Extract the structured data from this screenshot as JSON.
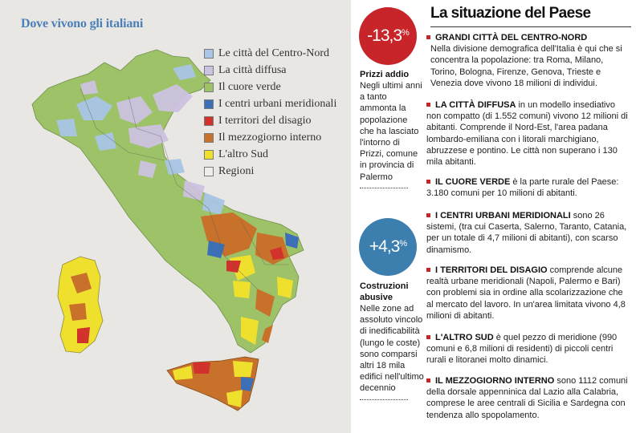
{
  "map": {
    "title": "Dove vivono gli italiani",
    "legend": [
      {
        "label": "Le città del Centro-Nord",
        "color": "#a9c6e6"
      },
      {
        "label": "La città diffusa",
        "color": "#cdc2e0"
      },
      {
        "label": "Il cuore verde",
        "color": "#9dc267"
      },
      {
        "label": "I centri urbani meridionali",
        "color": "#3d6fb6"
      },
      {
        "label": "I territori del disagio",
        "color": "#d2322c"
      },
      {
        "label": "Il mezzogiorno interno",
        "color": "#c8712a"
      },
      {
        "label": "L'altro Sud",
        "color": "#f0e02e"
      },
      {
        "label": "Regioni",
        "color": "#f0eeea"
      }
    ]
  },
  "stats": [
    {
      "value": "-13,3",
      "unit": "%",
      "color": "#c8252b",
      "head": "Prizzi addio",
      "body": "Negli ultimi anni a tanto ammonta la popolazione che ha lasciato l'intorno di Prizzi, comune in provincia di Palermo"
    },
    {
      "value": "+4,3",
      "unit": "%",
      "color": "#3c7fae",
      "head": "Costruzioni abusive",
      "body": "Nelle zone ad assoluto vincolo di inedificabilità (lungo le coste) sono comparsi altri 18 mila edifici nell'ultimo decennio"
    }
  ],
  "article": {
    "title": "La situazione del Paese",
    "sections": [
      {
        "head": "GRANDI CITTÀ DEL CENTRO-NORD",
        "body": "Nella divisione demografica dell'Italia è qui che si concentra la popolazione: tra Roma, Milano, Torino, Bologna, Firenze, Genova, Trieste e Venezia dove vivono 18 milioni di individui."
      },
      {
        "head": "LA CITTÀ DIFFUSA",
        "body": "in un modello insediativo non compatto (di 1.552 comuni) vivono 12 milioni di abitanti. Comprende il Nord-Est, l'area padana lombardo-emiliana con i litorali marchigiano, abruzzese e pontino. Le città non superano i 130 mila abitanti."
      },
      {
        "head": "IL CUORE VERDE",
        "body": "è la parte rurale del Paese: 3.180 comuni per 10 milioni di abitanti."
      },
      {
        "head": "I CENTRI URBANI MERIDIONALI",
        "body": "sono 26 sistemi, (tra cui Caserta, Salerno, Taranto, Catania, per un totale di 4,7 milioni di abitanti), con scarso dinamismo."
      },
      {
        "head": "I TERRITORI DEL DISAGIO",
        "body": "comprende alcune realtà urbane meridionali (Napoli, Palermo e Bari) con problemi sia in ordine alla scolarizzazione che al mercato del lavoro. In un'area limitata vivono 4,8 milioni di abitanti."
      },
      {
        "head": "L'ALTRO SUD",
        "body": "è quel pezzo di meridione (990 comuni e 6,8 milioni di residenti) di piccoli centri rurali e litoranei molto dinamici."
      },
      {
        "head": "IL MEZZOGIORNO INTERNO",
        "body": "sono 1112 comuni della dorsale appenninica dal Lazio alla Calabria, comprese le aree centrali di Sicilia e Sardegna con tendenza allo spopolamento."
      }
    ]
  }
}
